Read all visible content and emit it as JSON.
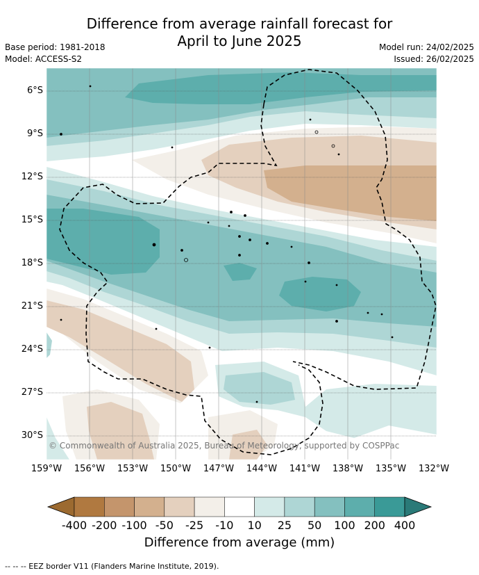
{
  "header": {
    "title_line1": "Difference from average rainfall forecast for",
    "title_line2": "April to June 2025",
    "base_period": "Base period: 1981-2018",
    "model": "Model: ACCESS-S2",
    "model_run": "Model run: 24/02/2025",
    "issued": "Issued: 26/02/2025"
  },
  "map": {
    "lat_labels": [
      "6°S",
      "9°S",
      "12°S",
      "15°S",
      "18°S",
      "21°S",
      "24°S",
      "27°S",
      "30°S"
    ],
    "lon_labels": [
      "159°W",
      "156°W",
      "153°W",
      "150°W",
      "147°W",
      "144°W",
      "141°W",
      "138°W",
      "135°W",
      "132°W"
    ],
    "copyright": "© Commonwealth of Australia 2025, Bureau of Meteorology, supported by COSPPac"
  },
  "legend": {
    "colors": [
      "#9c6a30",
      "#b07940",
      "#c4956c",
      "#d3b08e",
      "#e4d0be",
      "#f3efe9",
      "#ffffff",
      "#d4eae8",
      "#aed6d5",
      "#84c0bf",
      "#5daeac",
      "#3a9a97",
      "#2a7a78"
    ],
    "labels": [
      "-400",
      "-200",
      "-100",
      "-50",
      "-25",
      "-10",
      "10",
      "25",
      "50",
      "100",
      "200",
      "400"
    ],
    "title": "Difference from average (mm)"
  },
  "footnote": "-- -- -- EEZ border V11 (Flanders Marine Institute, 2019)."
}
